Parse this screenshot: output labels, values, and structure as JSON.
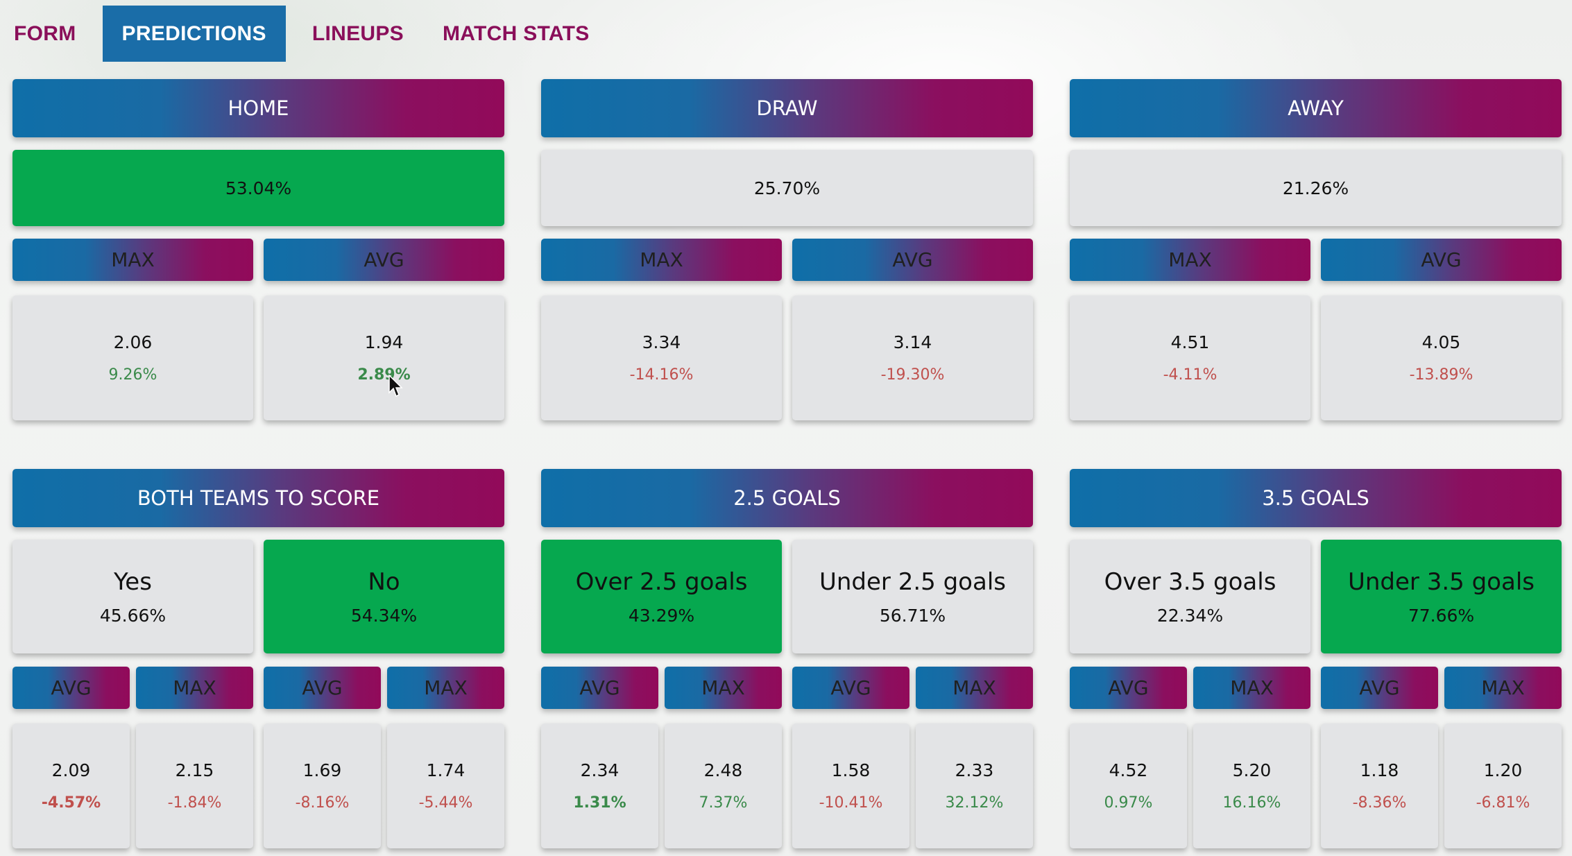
{
  "tabs": [
    {
      "label": "FORM"
    },
    {
      "label": "PREDICTIONS",
      "active": true
    },
    {
      "label": "LINEUPS"
    },
    {
      "label": "MATCH STATS"
    }
  ],
  "colors": {
    "accent_blue": "#1a6da8",
    "accent_magenta": "#8b0f5f",
    "highlight_green": "#06a84f",
    "positive": "#3a8a4a",
    "negative": "#c0504d"
  },
  "outcomes": [
    {
      "title": "HOME",
      "pct": "53.04%",
      "highlight": true,
      "max_label": "MAX",
      "avg_label": "AVG",
      "max_value": "2.06",
      "max_change": "9.26%",
      "avg_value": "1.94",
      "avg_change": "2.89%"
    },
    {
      "title": "DRAW",
      "pct": "25.70%",
      "highlight": false,
      "max_label": "MAX",
      "avg_label": "AVG",
      "max_value": "3.34",
      "max_change": "-14.16%",
      "avg_value": "3.14",
      "avg_change": "-19.30%"
    },
    {
      "title": "AWAY",
      "pct": "21.26%",
      "highlight": false,
      "max_label": "MAX",
      "avg_label": "AVG",
      "max_value": "4.51",
      "max_change": "-4.11%",
      "avg_value": "4.05",
      "avg_change": "-13.89%"
    }
  ],
  "markets": [
    {
      "title": "BOTH TEAMS TO SCORE",
      "options": [
        {
          "label": "Yes",
          "pct": "45.66%",
          "highlight": false,
          "avg_label": "AVG",
          "max_label": "MAX",
          "avg_value": "2.09",
          "avg_change": "-4.57%",
          "max_value": "2.15",
          "max_change": "-1.84%"
        },
        {
          "label": "No",
          "pct": "54.34%",
          "highlight": true,
          "avg_label": "AVG",
          "max_label": "MAX",
          "avg_value": "1.69",
          "avg_change": "-8.16%",
          "max_value": "1.74",
          "max_change": "-5.44%"
        }
      ]
    },
    {
      "title": "2.5 GOALS",
      "options": [
        {
          "label": "Over 2.5 goals",
          "pct": "43.29%",
          "highlight": true,
          "avg_label": "AVG",
          "max_label": "MAX",
          "avg_value": "2.34",
          "avg_change": "1.31%",
          "max_value": "2.48",
          "max_change": "7.37%"
        },
        {
          "label": "Under 2.5 goals",
          "pct": "56.71%",
          "highlight": false,
          "avg_label": "AVG",
          "max_label": "MAX",
          "avg_value": "1.58",
          "avg_change": "-10.41%",
          "max_value": "2.33",
          "max_change": "32.12%"
        }
      ]
    },
    {
      "title": "3.5 GOALS",
      "options": [
        {
          "label": "Over 3.5 goals",
          "pct": "22.34%",
          "highlight": false,
          "avg_label": "AVG",
          "max_label": "MAX",
          "avg_value": "4.52",
          "avg_change": "0.97%",
          "max_value": "5.20",
          "max_change": "16.16%"
        },
        {
          "label": "Under 3.5 goals",
          "pct": "77.66%",
          "highlight": true,
          "avg_label": "AVG",
          "max_label": "MAX",
          "avg_value": "1.18",
          "avg_change": "-8.36%",
          "max_value": "1.20",
          "max_change": "-6.81%"
        }
      ]
    }
  ]
}
